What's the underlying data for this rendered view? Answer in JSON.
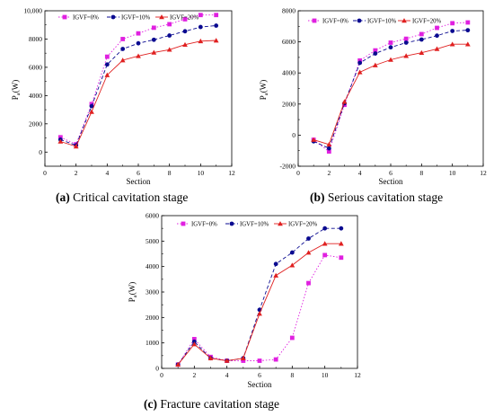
{
  "chart_data": [
    {
      "type": "line",
      "id": "a",
      "xlabel": "Section",
      "ylabel": "P",
      "ylabel_sub": "a",
      "ylabel_unit": "(W)",
      "xlim": [
        0,
        12
      ],
      "ylim": [
        -1000,
        10000
      ],
      "xticks": [
        0,
        2,
        4,
        6,
        8,
        10,
        12
      ],
      "yticks": [
        0,
        2000,
        4000,
        6000,
        8000,
        10000
      ],
      "ytick_labels": [
        "0",
        "2000",
        "4000",
        "6000",
        "8000",
        "10,000"
      ],
      "legend": "top",
      "x": [
        1,
        2,
        3,
        4,
        5,
        6,
        7,
        8,
        9,
        10,
        11
      ],
      "series": [
        {
          "name": "IGVF=0%",
          "color": "#e020e0",
          "marker": "square",
          "values": [
            1050,
            550,
            3400,
            6750,
            8000,
            8400,
            8800,
            9050,
            9400,
            9700,
            9700
          ]
        },
        {
          "name": "IGVF=10%",
          "color": "#0a0a90",
          "marker": "circle",
          "values": [
            880,
            480,
            3250,
            6200,
            7300,
            7700,
            7950,
            8250,
            8550,
            8850,
            8950
          ]
        },
        {
          "name": "IGVF=20%",
          "color": "#e02020",
          "marker": "triangle",
          "values": [
            750,
            400,
            2850,
            5450,
            6500,
            6800,
            7050,
            7250,
            7600,
            7850,
            7900
          ]
        }
      ]
    },
    {
      "type": "line",
      "id": "b",
      "xlabel": "Section",
      "ylabel": "P",
      "ylabel_sub": "a",
      "ylabel_unit": "(W)",
      "xlim": [
        0,
        12
      ],
      "ylim": [
        -2000,
        8000
      ],
      "xticks": [
        0,
        2,
        4,
        6,
        8,
        10,
        12
      ],
      "yticks": [
        -2000,
        0,
        2000,
        4000,
        6000,
        8000
      ],
      "ytick_labels": [
        "-2000",
        "0",
        "2000",
        "4000",
        "6000",
        "8000"
      ],
      "legend": "top",
      "x": [
        1,
        2,
        3,
        4,
        5,
        6,
        7,
        8,
        9,
        10,
        11
      ],
      "series": [
        {
          "name": "IGVF=0%",
          "color": "#e020e0",
          "marker": "square",
          "values": [
            -300,
            -1050,
            1950,
            4800,
            5450,
            5950,
            6200,
            6500,
            6900,
            7200,
            7250
          ]
        },
        {
          "name": "IGVF=10%",
          "color": "#0a0a90",
          "marker": "circle",
          "values": [
            -400,
            -850,
            2050,
            4650,
            5250,
            5650,
            5950,
            6150,
            6400,
            6700,
            6750
          ]
        },
        {
          "name": "IGVF=20%",
          "color": "#e02020",
          "marker": "triangle",
          "values": [
            -300,
            -600,
            2150,
            4050,
            4500,
            4850,
            5100,
            5300,
            5550,
            5850,
            5850
          ]
        }
      ]
    },
    {
      "type": "line",
      "id": "c",
      "xlabel": "Section",
      "ylabel": "P",
      "ylabel_sub": "a",
      "ylabel_unit": "(W)",
      "xlim": [
        0,
        12
      ],
      "ylim": [
        0,
        6000
      ],
      "xticks": [
        0,
        2,
        4,
        6,
        8,
        10,
        12
      ],
      "yticks": [
        0,
        1000,
        2000,
        3000,
        4000,
        5000,
        6000
      ],
      "ytick_labels": [
        "0",
        "1000",
        "2000",
        "3000",
        "4000",
        "5000",
        "6000"
      ],
      "legend": "top",
      "x": [
        1,
        2,
        3,
        4,
        5,
        6,
        7,
        8,
        9,
        10,
        11
      ],
      "series": [
        {
          "name": "IGVF=0%",
          "color": "#e020e0",
          "marker": "square",
          "values": [
            150,
            1150,
            450,
            300,
            300,
            300,
            350,
            1200,
            3350,
            4450,
            4350
          ]
        },
        {
          "name": "IGVF=10%",
          "color": "#0a0a90",
          "marker": "circle",
          "values": [
            150,
            1050,
            400,
            300,
            400,
            2300,
            4100,
            4550,
            5100,
            5500,
            5500
          ]
        },
        {
          "name": "IGVF=20%",
          "color": "#e02020",
          "marker": "triangle",
          "values": [
            150,
            950,
            400,
            300,
            400,
            2150,
            3650,
            4050,
            4550,
            4900,
            4900
          ]
        }
      ]
    }
  ],
  "captions": {
    "a": {
      "letter": "(a)",
      "text": " Critical cavitation stage"
    },
    "b": {
      "letter": "(b)",
      "text": " Serious cavitation stage"
    },
    "c": {
      "letter": "(c)",
      "text": " Fracture cavitation stage"
    }
  }
}
